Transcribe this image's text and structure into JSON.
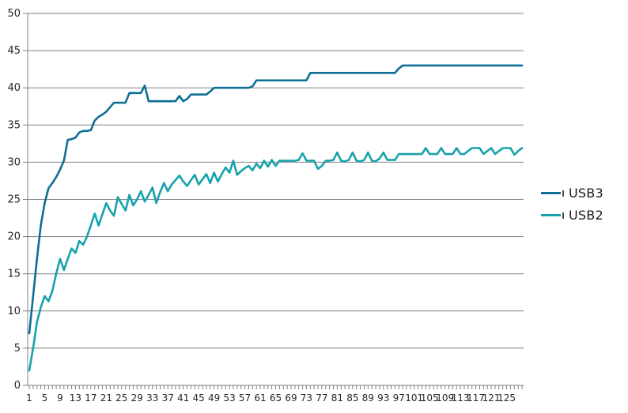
{
  "chart_data": {
    "type": "line",
    "title": "",
    "xlabel": "",
    "ylabel": "",
    "grid": "horizontal",
    "legend_position": "right",
    "x_axis": {
      "start": 1,
      "step": 1,
      "count": 129,
      "tick_labels": [
        1,
        5,
        9,
        13,
        17,
        21,
        25,
        29,
        33,
        37,
        41,
        45,
        49,
        53,
        57,
        61,
        65,
        69,
        73,
        77,
        81,
        85,
        89,
        93,
        97,
        101,
        105,
        109,
        113,
        117,
        121,
        125
      ]
    },
    "y_axis": {
      "min": 0,
      "max": 50,
      "tick_interval": 5,
      "tick_labels": [
        0,
        5,
        10,
        15,
        20,
        25,
        30,
        35,
        40,
        45,
        50
      ]
    },
    "series": [
      {
        "name": "USB3",
        "color": "#0e6e96",
        "values": [
          7,
          12,
          17,
          21.5,
          24.5,
          26.5,
          27.2,
          28,
          29,
          30.2,
          33,
          33.1,
          33.3,
          34,
          34.2,
          34.2,
          34.3,
          35.6,
          36.1,
          36.4,
          36.8,
          37.4,
          38,
          38,
          38,
          38,
          39.3,
          39.3,
          39.3,
          39.3,
          40.3,
          38.2,
          38.2,
          38.2,
          38.2,
          38.2,
          38.2,
          38.2,
          38.2,
          38.9,
          38.2,
          38.5,
          39.1,
          39.1,
          39.1,
          39.1,
          39.1,
          39.5,
          40,
          40,
          40,
          40,
          40,
          40,
          40,
          40,
          40,
          40,
          40.2,
          41,
          41,
          41,
          41,
          41,
          41,
          41,
          41,
          41,
          41,
          41,
          41,
          41,
          41,
          42,
          42,
          42,
          42,
          42,
          42,
          42,
          42,
          42,
          42,
          42,
          42,
          42,
          42,
          42,
          42,
          42,
          42,
          42,
          42,
          42,
          42,
          42,
          42.6,
          43,
          43,
          43,
          43,
          43,
          43,
          43,
          43,
          43,
          43,
          43,
          43,
          43,
          43,
          43,
          43,
          43,
          43,
          43,
          43,
          43,
          43,
          43,
          43,
          43,
          43,
          43,
          43,
          43,
          43,
          43,
          43
        ]
      },
      {
        "name": "USB2",
        "color": "#17a2ab",
        "values": [
          2,
          5,
          8.5,
          10.5,
          12,
          11.3,
          12.7,
          15,
          17,
          15.5,
          17,
          18.4,
          17.8,
          19.4,
          18.9,
          20,
          21.5,
          23.1,
          21.5,
          23,
          24.5,
          23.5,
          22.8,
          25.3,
          24.4,
          23.5,
          25.6,
          24.2,
          25,
          26.1,
          24.7,
          25.6,
          26.6,
          24.5,
          26,
          27.2,
          26.1,
          27,
          27.6,
          28.2,
          27.4,
          26.8,
          27.6,
          28.3,
          27,
          27.7,
          28.4,
          27.2,
          28.6,
          27.4,
          28.4,
          29.3,
          28.6,
          30.2,
          28.3,
          28.8,
          29.2,
          29.5,
          28.9,
          29.8,
          29.2,
          30.2,
          29.4,
          30.3,
          29.5,
          30.2,
          30.2,
          30.2,
          30.2,
          30.2,
          30.3,
          31.2,
          30.2,
          30.2,
          30.2,
          29.1,
          29.5,
          30.2,
          30.2,
          30.3,
          31.3,
          30.2,
          30.1,
          30.3,
          31.3,
          30.2,
          30.1,
          30.3,
          31.3,
          30.2,
          30.1,
          30.5,
          31.3,
          30.3,
          30.3,
          30.3,
          31.1,
          31.1,
          31.1,
          31.1,
          31.1,
          31.1,
          31.1,
          31.9,
          31.1,
          31.1,
          31.1,
          31.9,
          31.1,
          31.1,
          31.1,
          31.9,
          31.1,
          31.1,
          31.5,
          31.9,
          31.9,
          31.9,
          31.1,
          31.5,
          31.9,
          31.1,
          31.5,
          31.9,
          31.9,
          31.9,
          31.0,
          31.5,
          31.9
        ]
      }
    ]
  },
  "colors": {
    "background": "#ffffff",
    "gridline": "#808080",
    "axis": "#808080",
    "tick_text": "#262626"
  }
}
